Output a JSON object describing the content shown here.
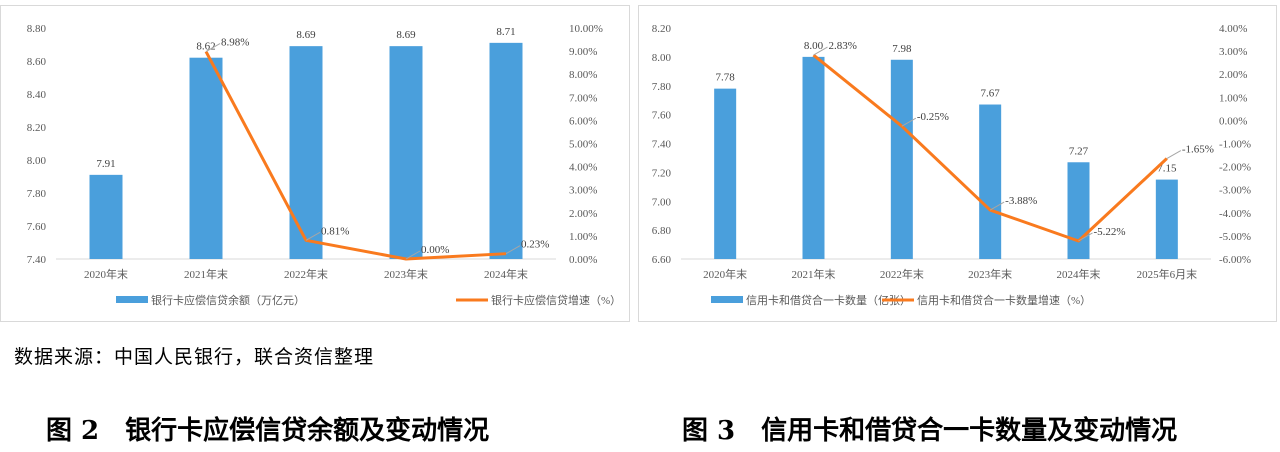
{
  "chart_data": [
    {
      "type": "bar+line",
      "categories": [
        "2020年末",
        "2021年末",
        "2022年末",
        "2023年末",
        "2024年末"
      ],
      "series": [
        {
          "name": "银行卡应偿信贷余额（万亿元）",
          "type": "bar",
          "axis": "left",
          "values": [
            7.91,
            8.62,
            8.69,
            8.69,
            8.71
          ],
          "labels": [
            "7.91",
            "8.62",
            "8.69",
            "8.69",
            "8.71"
          ]
        },
        {
          "name": "银行卡应偿信贷增速（%）",
          "type": "line",
          "axis": "right",
          "values": [
            null,
            8.98,
            0.81,
            0.0,
            0.23
          ],
          "labels": [
            "",
            "8.98%",
            "0.81%",
            "0.00%",
            "0.23%"
          ]
        }
      ],
      "ylim": [
        7.4,
        8.8
      ],
      "yticks": [
        "7.40",
        "7.60",
        "7.80",
        "8.00",
        "8.20",
        "8.40",
        "8.60",
        "8.80"
      ],
      "y2lim": [
        0,
        10
      ],
      "y2ticks": [
        "0.00%",
        "1.00%",
        "2.00%",
        "3.00%",
        "4.00%",
        "5.00%",
        "6.00%",
        "7.00%",
        "8.00%",
        "9.00%",
        "10.00%"
      ],
      "legend": "bottom",
      "grid": false,
      "colors": {
        "bar": "#4a9fdc",
        "line": "#f97a1e"
      }
    },
    {
      "type": "bar+line",
      "categories": [
        "2020年末",
        "2021年末",
        "2022年末",
        "2023年末",
        "2024年末",
        "2025年6月末"
      ],
      "series": [
        {
          "name": "信用卡和借贷合一卡数量（亿张）",
          "type": "bar",
          "axis": "left",
          "values": [
            7.78,
            8.0,
            7.98,
            7.67,
            7.27,
            7.15
          ],
          "labels": [
            "7.78",
            "8.00",
            "7.98",
            "7.67",
            "7.27",
            "7.15"
          ]
        },
        {
          "name": "信用卡和借贷合一卡数量增速（%）",
          "type": "line",
          "axis": "right",
          "values": [
            null,
            2.83,
            -0.25,
            -3.88,
            -5.22,
            -1.65
          ],
          "labels": [
            "",
            "2.83%",
            "-0.25%",
            "-3.88%",
            "-5.22%",
            "-1.65%"
          ]
        }
      ],
      "ylim": [
        6.6,
        8.2
      ],
      "yticks": [
        "6.60",
        "6.80",
        "7.00",
        "7.20",
        "7.40",
        "7.60",
        "7.80",
        "8.00",
        "8.20"
      ],
      "y2lim": [
        -6,
        4
      ],
      "y2ticks": [
        "-6.00%",
        "-5.00%",
        "-4.00%",
        "-3.00%",
        "-2.00%",
        "-1.00%",
        "0.00%",
        "1.00%",
        "2.00%",
        "3.00%",
        "4.00%"
      ],
      "legend": "bottom",
      "grid": false,
      "colors": {
        "bar": "#4a9fdc",
        "line": "#f97a1e"
      }
    }
  ],
  "source": "数据来源：中国人民银行，联合资信整理",
  "captions": [
    "图 2　银行卡应偿信贷余额及变动情况",
    "图 3　信用卡和借贷合一卡数量及变动情况"
  ]
}
